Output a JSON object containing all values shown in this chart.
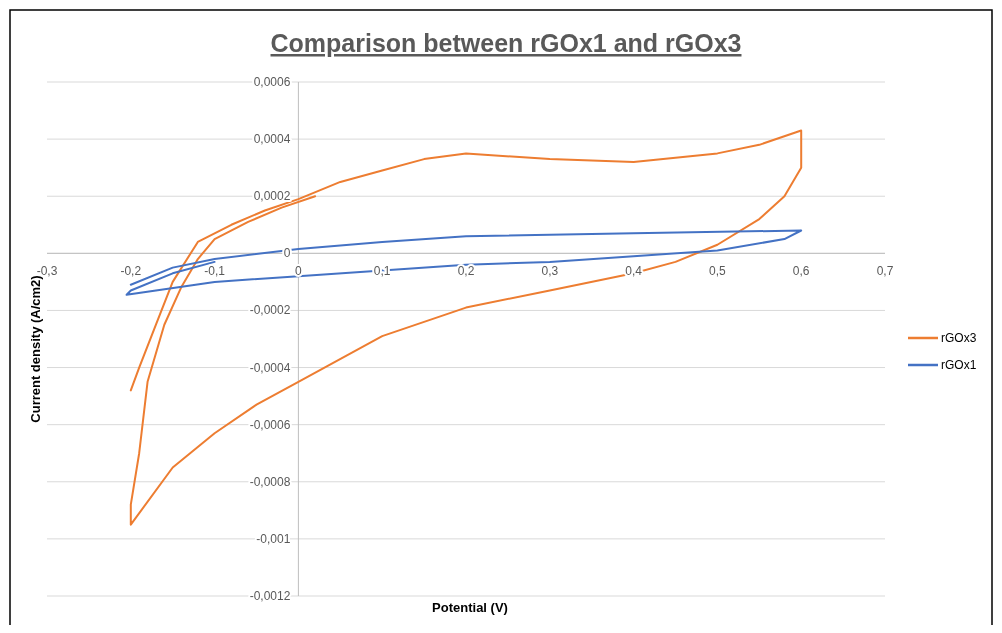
{
  "chart_data": {
    "type": "line",
    "title": "Comparison between rGOx1 and rGOx3",
    "xlabel": "Potential (V)",
    "ylabel": "Current density (A/cm2)",
    "xlim": [
      -0.3,
      0.7
    ],
    "xticks": [
      {
        "value": -0.3,
        "label": "-0,3"
      },
      {
        "value": -0.2,
        "label": "-0,2"
      },
      {
        "value": -0.1,
        "label": "-0,1"
      },
      0,
      {
        "value": 0.1,
        "label": "0,1"
      },
      {
        "value": 0.2,
        "label": "0,2"
      },
      {
        "value": 0.3,
        "label": "0,3"
      },
      {
        "value": 0.4,
        "label": "0,4"
      },
      {
        "value": 0.5,
        "label": "0,5"
      },
      {
        "value": 0.6,
        "label": "0,6"
      },
      {
        "value": 0.7,
        "label": "0,7"
      }
    ],
    "ylim": [
      -0.0012,
      0.0006
    ],
    "yticks": [
      {
        "value": -0.0012,
        "label": "-0,0012"
      },
      {
        "value": -0.001,
        "label": "-0,001"
      },
      {
        "value": -0.0008,
        "label": "-0,0008"
      },
      {
        "value": -0.0006,
        "label": "-0,0006"
      },
      {
        "value": -0.0004,
        "label": "-0,0004"
      },
      {
        "value": -0.0002,
        "label": "-0,0002"
      },
      0,
      {
        "value": 0.0002,
        "label": "0,0002"
      },
      {
        "value": 0.0004,
        "label": "0,0004"
      },
      {
        "value": 0.0006,
        "label": "0,0006"
      }
    ],
    "grid": "y",
    "legend": "right",
    "marker": "none",
    "line_style": "solid",
    "series": [
      {
        "name": "rGOx3",
        "color": "#ed7d31",
        "x": [
          -0.2,
          -0.19,
          -0.17,
          -0.15,
          -0.12,
          -0.08,
          -0.04,
          0,
          0.05,
          0.1,
          0.15,
          0.2,
          0.3,
          0.4,
          0.5,
          0.55,
          0.6,
          0.6,
          0.58,
          0.55,
          0.5,
          0.45,
          0.4,
          0.3,
          0.2,
          0.1,
          0,
          -0.05,
          -0.1,
          -0.15,
          -0.2,
          -0.2,
          -0.19,
          -0.18,
          -0.16,
          -0.14,
          -0.12,
          -0.1,
          -0.06,
          -0.02,
          0.02
        ],
        "values": [
          -0.00048,
          -0.0004,
          -0.00025,
          -0.0001,
          4e-05,
          0.0001,
          0.00015,
          0.00019,
          0.00025,
          0.00029,
          0.00033,
          0.00035,
          0.00033,
          0.00032,
          0.00035,
          0.00038,
          0.00043,
          0.0003,
          0.0002,
          0.00012,
          3e-05,
          -3e-05,
          -7e-05,
          -0.00013,
          -0.00019,
          -0.00029,
          -0.00045,
          -0.00053,
          -0.00063,
          -0.00075,
          -0.00095,
          -0.00088,
          -0.0007,
          -0.00045,
          -0.00025,
          -0.00012,
          -2e-05,
          5e-05,
          0.00011,
          0.00016,
          0.0002
        ]
      },
      {
        "name": "rGOx1",
        "color": "#4472c4",
        "x": [
          -0.2,
          -0.15,
          -0.1,
          0,
          0.1,
          0.2,
          0.4,
          0.6,
          0.58,
          0.5,
          0.4,
          0.3,
          0.2,
          0.1,
          0,
          -0.1,
          -0.205,
          -0.2,
          -0.15,
          -0.1
        ],
        "values": [
          -0.00011,
          -5e-05,
          -2e-05,
          1.5e-05,
          4e-05,
          6e-05,
          7e-05,
          8e-05,
          5e-05,
          1e-05,
          -1e-05,
          -3e-05,
          -4e-05,
          -6e-05,
          -8e-05,
          -0.0001,
          -0.000145,
          -0.00013,
          -7e-05,
          -3e-05
        ]
      }
    ]
  }
}
